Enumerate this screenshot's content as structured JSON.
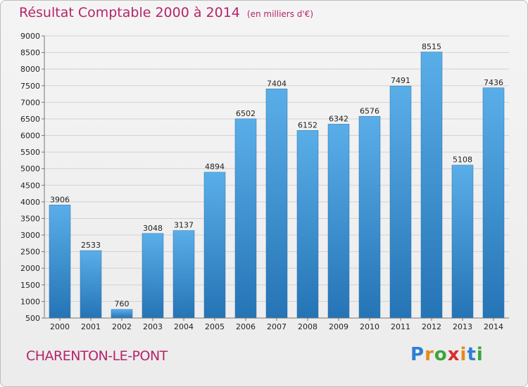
{
  "header": {
    "title": "Résultat Comptable 2000 à 2014",
    "subtitle": "(en milliers d'€)"
  },
  "footer": {
    "city": "CHARENTON-LE-PONT",
    "logo": [
      "P",
      "r",
      "o",
      "x",
      "i",
      "t",
      "i"
    ],
    "logo_colors": [
      "#2e7fd0",
      "#e38b1e",
      "#3aa636",
      "#d92c2c",
      "#e38b1e",
      "#2e7fd0",
      "#3aa636"
    ]
  },
  "colors": {
    "bar_top": "#5aaee8",
    "bar_bottom": "#2574b6",
    "accent": "#b5246b"
  },
  "chart_data": {
    "type": "bar",
    "title": "Résultat Comptable 2000 à 2014",
    "subtitle": "(en milliers d'€)",
    "categories": [
      "2000",
      "2001",
      "2002",
      "2003",
      "2004",
      "2005",
      "2006",
      "2007",
      "2008",
      "2009",
      "2010",
      "2011",
      "2012",
      "2013",
      "2014"
    ],
    "values": [
      3906,
      2533,
      760,
      3048,
      3137,
      4894,
      6502,
      7404,
      6152,
      6342,
      6576,
      7491,
      8515,
      5108,
      7436
    ],
    "ylim": [
      500,
      9000
    ],
    "yticks": [
      500,
      1000,
      1500,
      2000,
      2500,
      3000,
      3500,
      4000,
      4500,
      5000,
      5500,
      6000,
      6500,
      7000,
      7500,
      8000,
      8500,
      9000
    ],
    "xlabel": "",
    "ylabel": "",
    "grid": true
  }
}
